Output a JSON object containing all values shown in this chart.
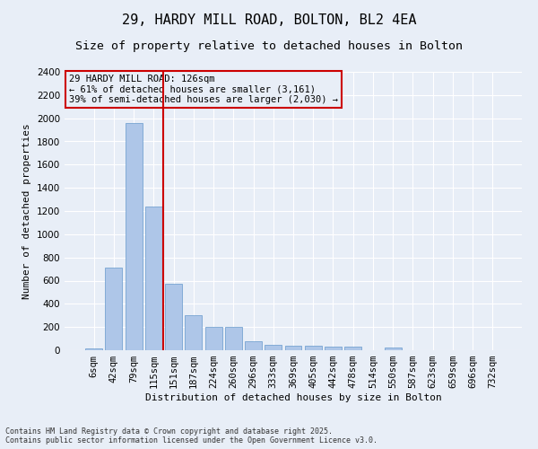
{
  "title_line1": "29, HARDY MILL ROAD, BOLTON, BL2 4EA",
  "title_line2": "Size of property relative to detached houses in Bolton",
  "xlabel": "Distribution of detached houses by size in Bolton",
  "ylabel": "Number of detached properties",
  "categories": [
    "6sqm",
    "42sqm",
    "79sqm",
    "115sqm",
    "151sqm",
    "187sqm",
    "224sqm",
    "260sqm",
    "296sqm",
    "333sqm",
    "369sqm",
    "405sqm",
    "442sqm",
    "478sqm",
    "514sqm",
    "550sqm",
    "587sqm",
    "623sqm",
    "659sqm",
    "696sqm",
    "732sqm"
  ],
  "values": [
    15,
    710,
    1960,
    1240,
    570,
    305,
    200,
    200,
    80,
    45,
    35,
    35,
    30,
    30,
    0,
    20,
    0,
    0,
    0,
    0,
    0
  ],
  "bar_color": "#aec6e8",
  "bar_edge_color": "#6699cc",
  "vline_color": "#cc0000",
  "annotation_text": "29 HARDY MILL ROAD: 126sqm\n← 61% of detached houses are smaller (3,161)\n39% of semi-detached houses are larger (2,030) →",
  "annotation_box_color": "#cc0000",
  "ylim": [
    0,
    2400
  ],
  "yticks": [
    0,
    200,
    400,
    600,
    800,
    1000,
    1200,
    1400,
    1600,
    1800,
    2000,
    2200,
    2400
  ],
  "bg_color": "#e8eef7",
  "grid_color": "#ffffff",
  "footer": "Contains HM Land Registry data © Crown copyright and database right 2025.\nContains public sector information licensed under the Open Government Licence v3.0.",
  "title_fontsize": 11,
  "subtitle_fontsize": 9.5,
  "axis_label_fontsize": 8,
  "tick_fontsize": 7.5,
  "annotation_fontsize": 7.5,
  "footer_fontsize": 6
}
